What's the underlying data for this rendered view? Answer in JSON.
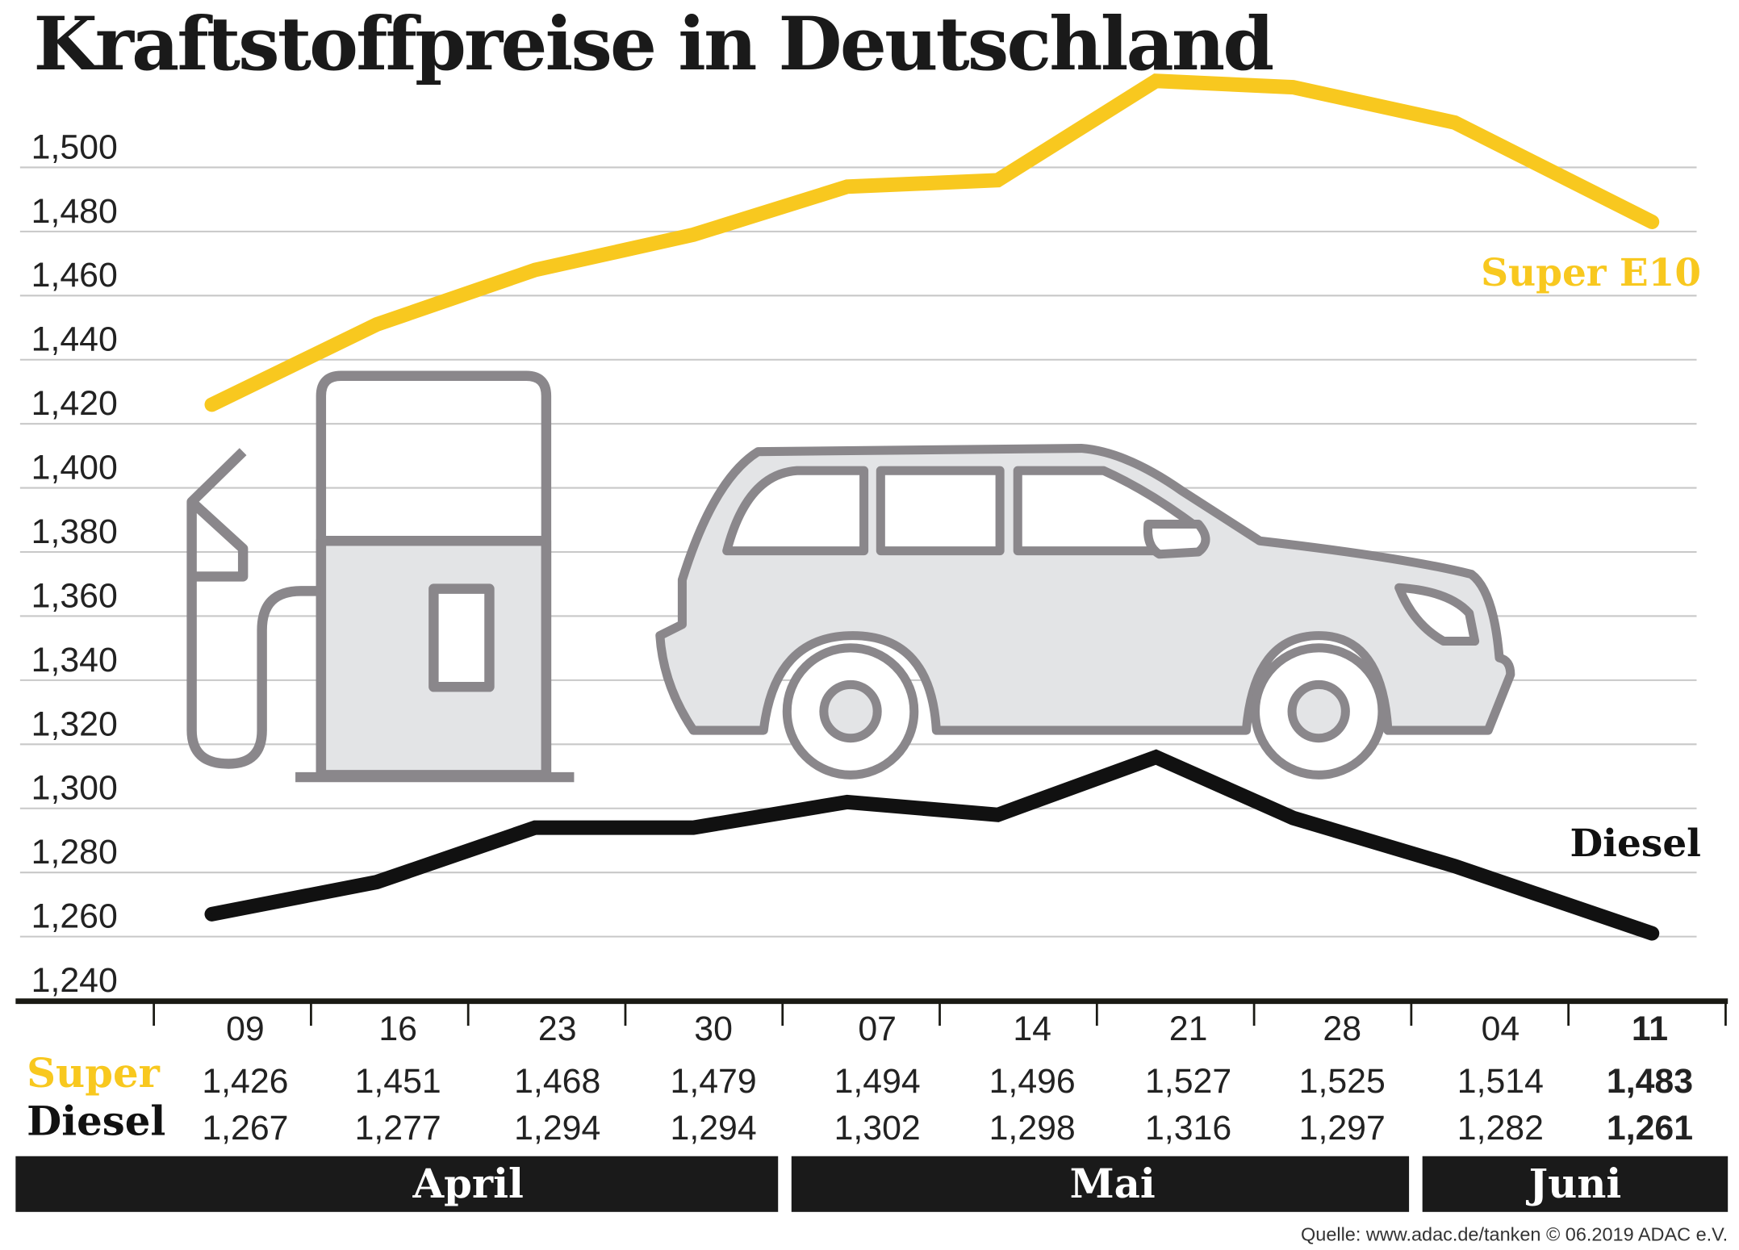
{
  "chart_data": {
    "type": "line",
    "title": "Kraftstoffpreise in Deutschland",
    "xlabel": "",
    "ylabel": "",
    "ylim": [
      1240,
      1500
    ],
    "y_ticks": [
      "1,500",
      "1,480",
      "1,460",
      "1,440",
      "1,420",
      "1,400",
      "1,380",
      "1,360",
      "1,340",
      "1,320",
      "1,300",
      "1,280",
      "1,260",
      "1,240"
    ],
    "y_tick_values": [
      1500,
      1480,
      1460,
      1440,
      1420,
      1400,
      1380,
      1360,
      1340,
      1320,
      1300,
      1280,
      1260,
      1240
    ],
    "grid": true,
    "categories": [
      "09",
      "16",
      "23",
      "30",
      "07",
      "14",
      "21",
      "28",
      "04",
      "11"
    ],
    "months": [
      "April",
      "Mai",
      "Juni"
    ],
    "series": [
      {
        "name": "Super E10",
        "row_label": "Super",
        "color": "#f8c81f",
        "values": [
          1.426,
          1.451,
          1.468,
          1.479,
          1.494,
          1.496,
          1.527,
          1.525,
          1.514,
          1.483
        ],
        "labels": [
          "1,426",
          "1,451",
          "1,468",
          "1,479",
          "1,494",
          "1,496",
          "1,527",
          "1,525",
          "1,514",
          "1,483"
        ]
      },
      {
        "name": "Diesel",
        "row_label": "Diesel",
        "color": "#111111",
        "values": [
          1.267,
          1.277,
          1.294,
          1.294,
          1.302,
          1.298,
          1.316,
          1.297,
          1.282,
          1.261
        ],
        "labels": [
          "1,267",
          "1,277",
          "1,294",
          "1,294",
          "1,302",
          "1,298",
          "1,316",
          "1,297",
          "1,282",
          "1,261"
        ]
      }
    ]
  },
  "source": "Quelle: www.adac.de/tanken   © 06.2019  ADAC e.V.",
  "icons": [
    "fuel-pump-icon",
    "car-icon"
  ],
  "colors": {
    "icon_stroke": "#8a878b",
    "icon_fill": "#e3e4e6",
    "grid": "#c8c8c8"
  }
}
